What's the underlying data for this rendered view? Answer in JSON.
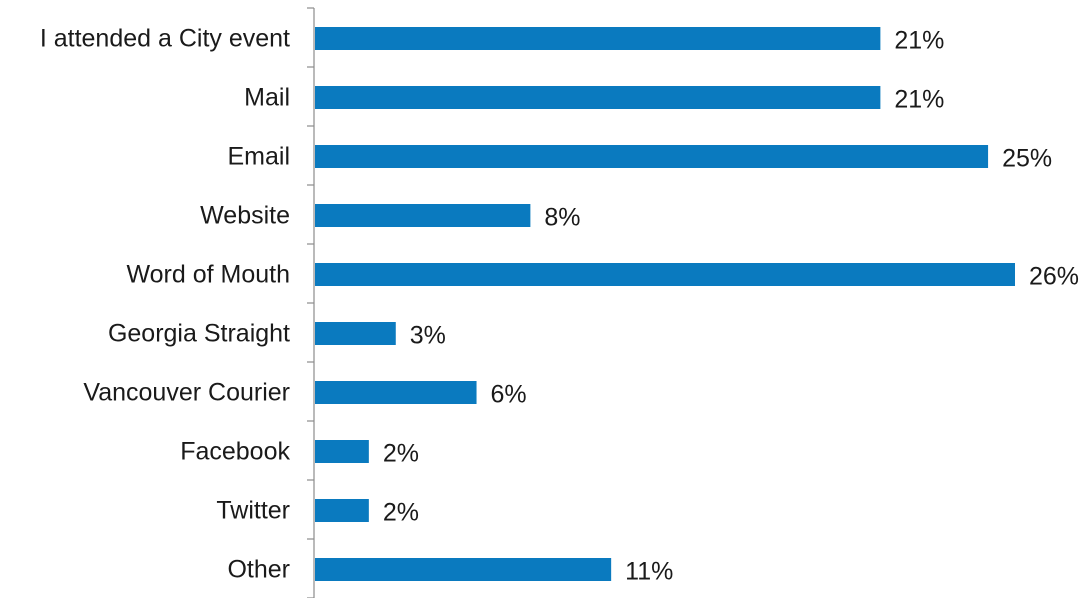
{
  "chart_data": {
    "type": "bar",
    "orientation": "horizontal",
    "title": "",
    "xlabel": "",
    "ylabel": "",
    "categories": [
      "I attended a City event",
      "Mail",
      "Email",
      "Website",
      "Word of Mouth",
      "Georgia Straight",
      "Vancouver Courier",
      "Facebook",
      "Twitter",
      "Other"
    ],
    "values": [
      21,
      21,
      25,
      8,
      26,
      3,
      6,
      2,
      2,
      11
    ],
    "value_labels": [
      "21%",
      "21%",
      "25%",
      "8%",
      "26%",
      "3%",
      "6%",
      "2%",
      "2%",
      "11%"
    ],
    "unit": "%",
    "xlim": [
      0,
      26
    ],
    "grid": false,
    "legend": "none",
    "bar_color": "#0a7abf"
  }
}
